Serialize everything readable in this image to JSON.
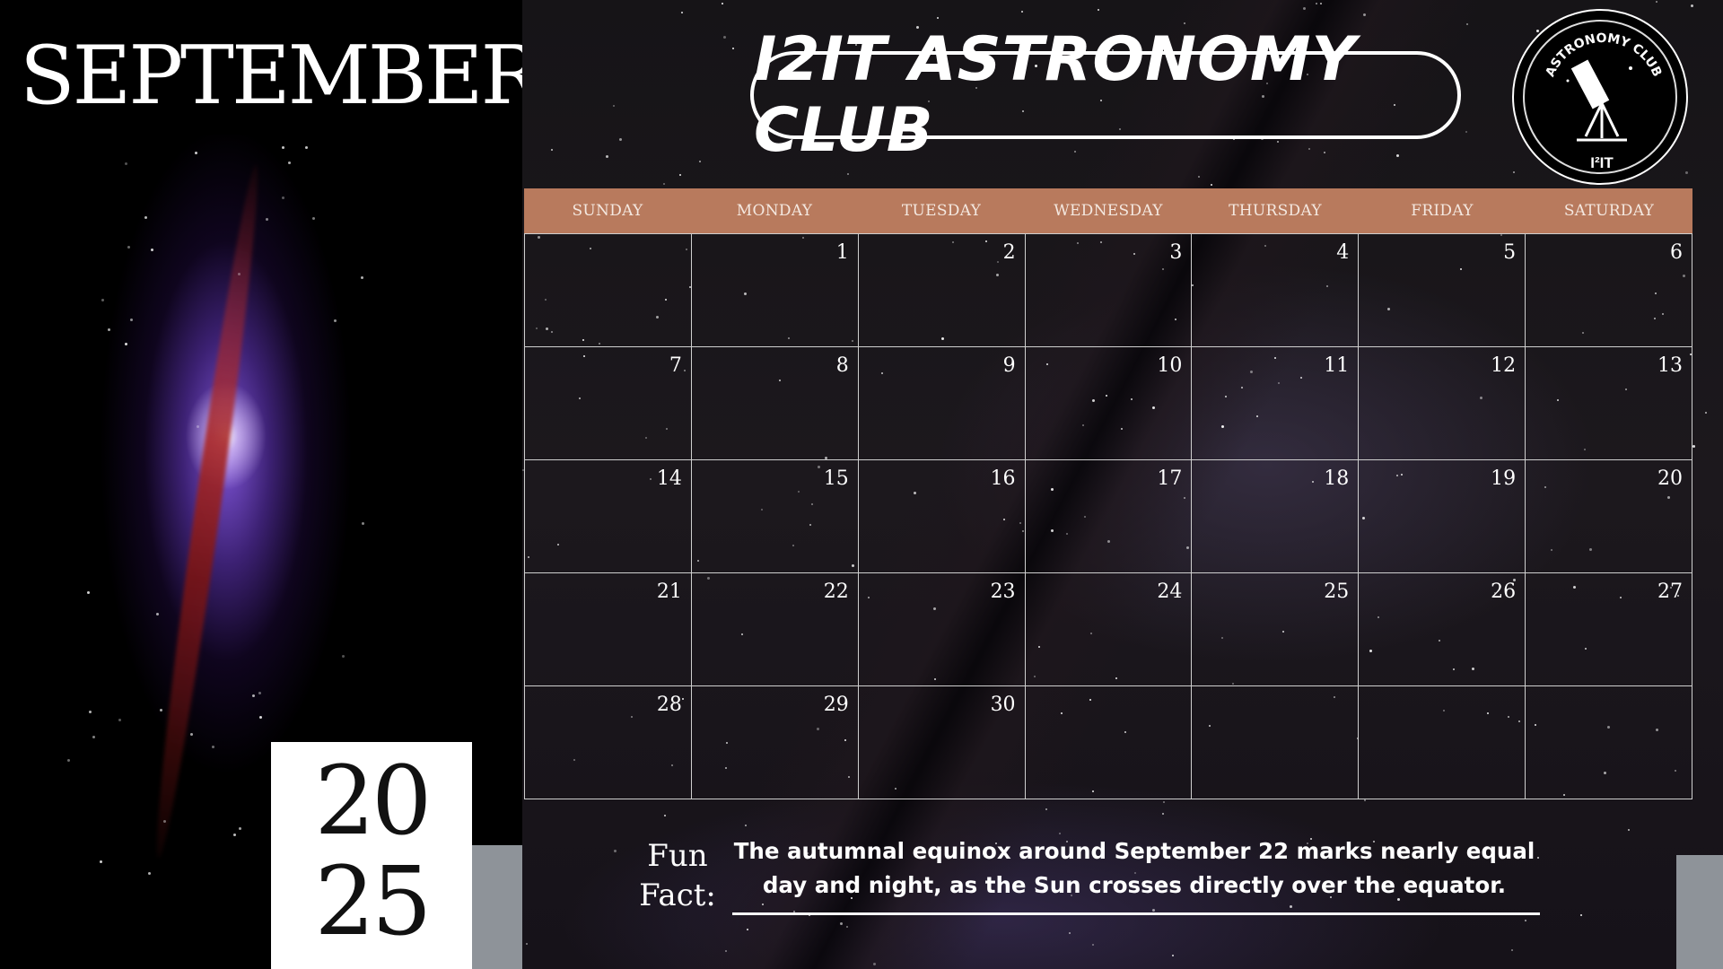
{
  "calendar": {
    "month": "SEPTEMBER",
    "year_line1": "20",
    "year_line2": "25",
    "weekdays": [
      "SUNDAY",
      "MONDAY",
      "TUESDAY",
      "WEDNESDAY",
      "THURSDAY",
      "FRIDAY",
      "SATURDAY"
    ],
    "weeks": [
      [
        "",
        "1",
        "2",
        "3",
        "4",
        "5",
        "6"
      ],
      [
        "7",
        "8",
        "9",
        "10",
        "11",
        "12",
        "13"
      ],
      [
        "14",
        "15",
        "16",
        "17",
        "18",
        "19",
        "20"
      ],
      [
        "21",
        "22",
        "23",
        "24",
        "25",
        "26",
        "27"
      ],
      [
        "28",
        "29",
        "30",
        "",
        "",
        "",
        ""
      ]
    ]
  },
  "header": {
    "title": "I2IT  ASTRONOMY CLUB"
  },
  "logo": {
    "arc_text": "ASTRONOMY CLUB",
    "bottom_text": "I²IT"
  },
  "fun_fact": {
    "label_line1": "Fun",
    "label_line2": "Fact:",
    "text": "The autumnal equinox around September 22 marks nearly equal day and night, as the Sun crosses directly over the equator."
  },
  "colors": {
    "header_band": "#b87a5d",
    "grid_lines": "#cfcfcf",
    "accent_gray": "#8e9399"
  }
}
